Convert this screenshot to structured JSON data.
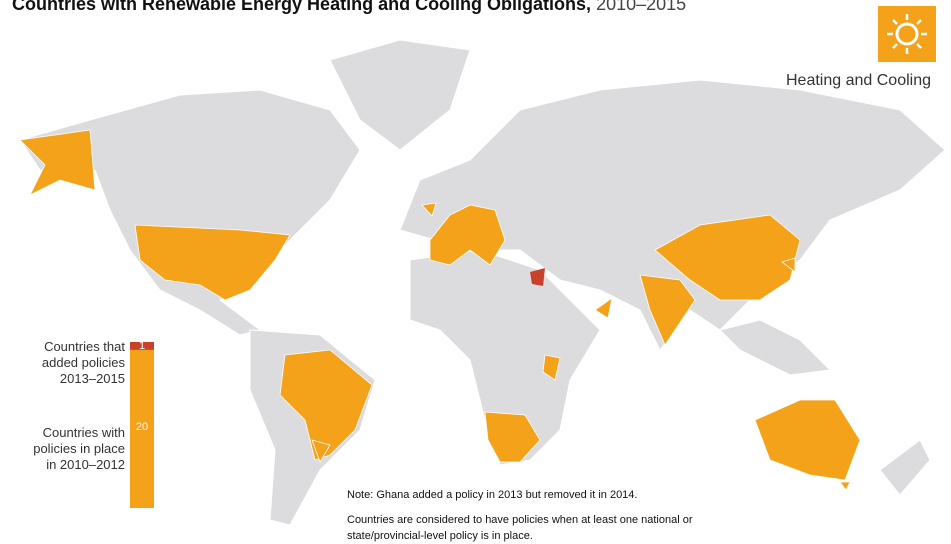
{
  "header": {
    "title": "Countries with Renewable Energy Heating and Cooling Obligations,",
    "title_years": "2010–2015",
    "section": "Heating and Cooling"
  },
  "legend": {
    "type": "stacked-bar",
    "segments": [
      {
        "name": "Countries with\npolicies in place\nin 2010–2012",
        "value": 20,
        "color": "#f5a21b"
      },
      {
        "name": "Countries that\nadded policies\n2013–2015",
        "value": 1,
        "color": "#c8412a"
      }
    ]
  },
  "notes": [
    "Note: Ghana added a policy in 2013 but removed it in 2014.",
    "Countries are considered to have policies when at least one national or state/provincial-level policy is in place."
  ]
}
